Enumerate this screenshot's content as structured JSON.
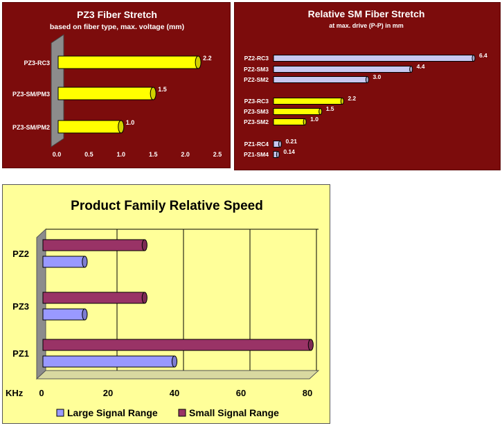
{
  "chart_data": [
    {
      "type": "bar",
      "title": "PZ3 Fiber Stretch",
      "subtitle": "based on fiber type, max. voltage (mm)",
      "categories": [
        "PZ3-RC3",
        "PZ3-SM/PM3",
        "PZ3-SM/PM2"
      ],
      "values": [
        2.2,
        1.5,
        1.0
      ],
      "value_labels": [
        "2.2",
        "1.5",
        "1.0"
      ],
      "xticks": [
        "0.0",
        "0.5",
        "1.0",
        "1.5",
        "2.0",
        "2.5"
      ],
      "xlim": [
        0,
        2.5
      ],
      "bar_color": "#ffff00",
      "background": "#7c0c0c"
    },
    {
      "type": "bar",
      "title": "Relative SM Fiber Stretch",
      "subtitle": "at max. drive (P-P) in mm",
      "categories": [
        "PZ2-RC3",
        "PZ2-SM3",
        "PZ2-SM2",
        "PZ3-RC3",
        "PZ3-SM3",
        "PZ3-SM2",
        "PZ1-RC4",
        "PZ1-SM4"
      ],
      "values": [
        6.4,
        4.4,
        3.0,
        2.2,
        1.5,
        1.0,
        0.21,
        0.14
      ],
      "value_labels": [
        "6.4",
        "4.4",
        "3.0",
        "2.2",
        "1.5",
        "1.0",
        "0.21",
        "0.14"
      ],
      "bar_colors": [
        "#c8c8f0",
        "#c8c8f0",
        "#c8c8f0",
        "#ffff00",
        "#ffff00",
        "#ffff00",
        "#c8c8f0",
        "#c8c8f0"
      ],
      "xlim": [
        0,
        6.6
      ],
      "background": "#7c0c0c"
    },
    {
      "type": "bar",
      "title": "Product Family Relative Speed",
      "categories": [
        "PZ2",
        "PZ3",
        "PZ1"
      ],
      "series": [
        {
          "name": "Large Signal Range",
          "values": [
            13,
            13,
            40
          ],
          "color": "#9999ff"
        },
        {
          "name": "Small Signal Range",
          "values": [
            31,
            31,
            81
          ],
          "color": "#993366"
        }
      ],
      "xlabel": "KHz",
      "xticks": [
        "0",
        "20",
        "40",
        "60",
        "80"
      ],
      "xlim": [
        0,
        80
      ],
      "grid": true,
      "legend_position": "bottom",
      "background": "#ffff99"
    }
  ]
}
